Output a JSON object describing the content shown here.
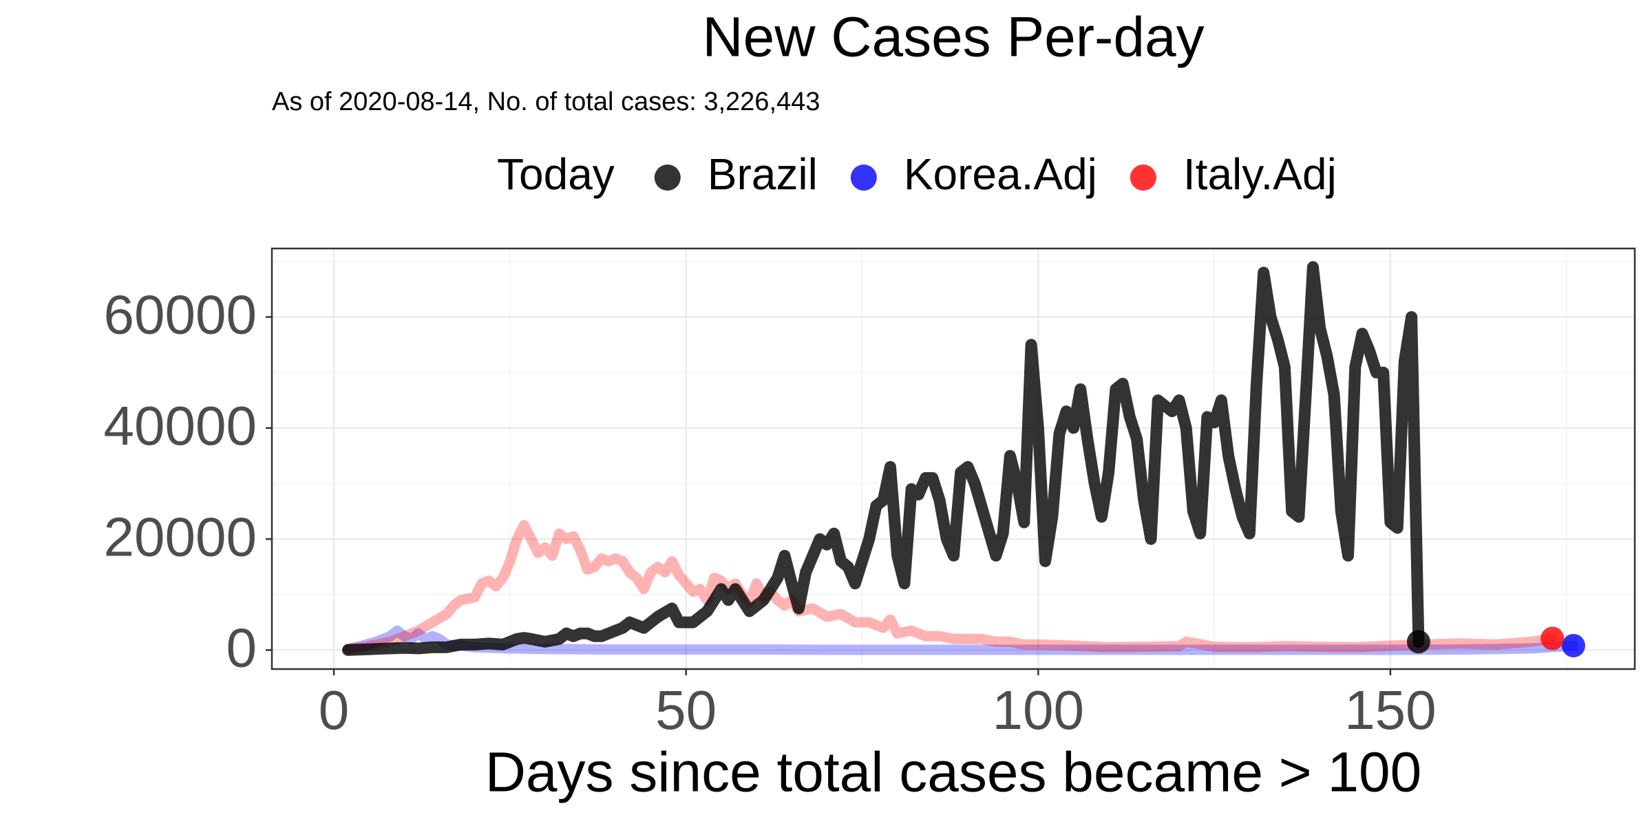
{
  "chart_data": {
    "type": "line",
    "title": "New Cases Per-day",
    "subtitle": "As of 2020-08-14, No. of total cases: 3,226,443",
    "x_label": "Days since total cases became > 100",
    "legend_title": "Today",
    "xlim": [
      -8.8,
      184.7
    ],
    "xticks": [
      0,
      50,
      100,
      150
    ],
    "xminor": [
      25,
      75,
      125,
      175
    ],
    "ylim": [
      -3418,
      72340
    ],
    "yticks": [
      0,
      20000,
      40000,
      60000
    ],
    "yminor": [
      10000,
      30000,
      50000,
      70000
    ],
    "grid": true,
    "series": [
      {
        "name": "Brazil",
        "color": "#000000",
        "x": [
          2,
          4,
          6,
          8,
          10,
          12,
          14,
          16,
          18,
          20,
          22,
          24,
          26,
          27,
          28,
          30,
          32,
          33,
          34,
          35,
          36,
          37,
          38,
          40,
          41,
          42,
          44,
          46,
          48,
          49,
          51,
          53,
          55,
          56,
          57,
          59,
          61,
          63,
          64,
          65,
          66,
          67,
          69,
          70,
          71,
          72,
          73,
          74,
          76,
          77,
          78,
          79,
          80,
          81,
          82,
          83,
          84,
          85,
          86,
          87,
          88,
          89,
          90,
          91,
          94,
          95,
          96,
          97,
          98,
          99,
          100,
          101,
          102,
          103,
          104,
          105,
          106,
          107,
          108,
          109,
          110,
          111,
          112,
          113,
          114,
          115,
          116,
          117,
          118,
          119,
          120,
          121,
          122,
          123,
          124,
          125,
          126,
          127,
          128,
          129,
          130,
          131,
          132,
          133,
          134,
          135,
          136,
          137,
          138,
          139,
          140,
          141,
          142,
          143,
          144,
          145,
          146,
          147,
          148,
          149,
          150,
          151,
          152,
          153,
          154
        ],
        "values": [
          0,
          100,
          200,
          300,
          400,
          300,
          500,
          500,
          1000,
          1000,
          1200,
          1000,
          2000,
          2200,
          2000,
          1500,
          2000,
          3000,
          2500,
          3000,
          3000,
          2500,
          2500,
          3500,
          4000,
          5000,
          4000,
          6000,
          7500,
          5000,
          5000,
          7000,
          11000,
          9000,
          11000,
          7000,
          9000,
          13000,
          17000,
          12000,
          7500,
          14000,
          20000,
          19000,
          21000,
          16000,
          15000,
          12000,
          20000,
          26000,
          27000,
          33000,
          17000,
          12000,
          29000,
          28000,
          31000,
          31000,
          27000,
          20000,
          17000,
          32000,
          33000,
          30000,
          17000,
          21000,
          35000,
          30000,
          23000,
          55000,
          40000,
          16000,
          24000,
          39000,
          43000,
          40000,
          47000,
          38000,
          30000,
          24000,
          32000,
          47000,
          48000,
          42000,
          38000,
          27000,
          20000,
          45000,
          44000,
          43000,
          45000,
          40000,
          25000,
          21000,
          42000,
          41000,
          45000,
          35000,
          29000,
          24000,
          21000,
          48000,
          68000,
          60000,
          56000,
          51000,
          25000,
          24000,
          46000,
          69000,
          58000,
          53000,
          46000,
          25000,
          17000,
          51000,
          57000,
          54000,
          50000,
          50000,
          23000,
          22000,
          52000,
          60000,
          1500
        ]
      },
      {
        "name": "Korea.Adj",
        "color": "#0000ff",
        "x": [
          2,
          4,
          6,
          8,
          9,
          10,
          11,
          12,
          13,
          14,
          15,
          16,
          18,
          20,
          25,
          30,
          40,
          50,
          60,
          70,
          80,
          90,
          100,
          110,
          120,
          130,
          140,
          150,
          160,
          170,
          176
        ],
        "values": [
          200,
          800,
          1500,
          2500,
          3500,
          2500,
          2000,
          3000,
          2000,
          2500,
          2000,
          1000,
          800,
          500,
          300,
          200,
          100,
          100,
          100,
          50,
          50,
          50,
          50,
          50,
          50,
          50,
          50,
          50,
          100,
          300,
          800
        ]
      },
      {
        "name": "Italy.Adj",
        "color": "#ff0000",
        "x": [
          2,
          4,
          6,
          8,
          10,
          12,
          14,
          16,
          17,
          18,
          20,
          21,
          22,
          23,
          24,
          25,
          26,
          27,
          28,
          29,
          30,
          31,
          32,
          33,
          34,
          35,
          36,
          37,
          38,
          39,
          40,
          41,
          42,
          43,
          44,
          45,
          46,
          47,
          48,
          49,
          50,
          51,
          52,
          53,
          54,
          55,
          56,
          57,
          58,
          59,
          60,
          61,
          62,
          63,
          64,
          65,
          66,
          68,
          70,
          72,
          74,
          76,
          78,
          79,
          80,
          82,
          84,
          86,
          88,
          90,
          92,
          94,
          96,
          98,
          100,
          105,
          110,
          115,
          120,
          121,
          125,
          130,
          135,
          140,
          145,
          150,
          155,
          160,
          165,
          170,
          173
        ],
        "values": [
          200,
          500,
          1000,
          1500,
          2500,
          3500,
          5000,
          6500,
          8000,
          9000,
          9500,
          12000,
          12500,
          11500,
          13000,
          16000,
          20000,
          22500,
          20000,
          17500,
          18500,
          17000,
          21000,
          20000,
          20500,
          18000,
          14500,
          15000,
          16500,
          16000,
          16500,
          16000,
          14000,
          13000,
          11000,
          14000,
          15000,
          14000,
          16000,
          13500,
          12000,
          10500,
          11000,
          9000,
          13000,
          12500,
          11000,
          12000,
          10000,
          8500,
          12000,
          9500,
          10500,
          9000,
          8000,
          9000,
          7000,
          7500,
          6000,
          6500,
          5000,
          5000,
          4000,
          5500,
          3000,
          3500,
          2500,
          2500,
          2000,
          2000,
          2000,
          1500,
          1500,
          1000,
          1000,
          800,
          500,
          600,
          700,
          1500,
          600,
          500,
          700,
          600,
          500,
          800,
          1000,
          1200,
          1000,
          1500,
          2100
        ]
      }
    ]
  }
}
